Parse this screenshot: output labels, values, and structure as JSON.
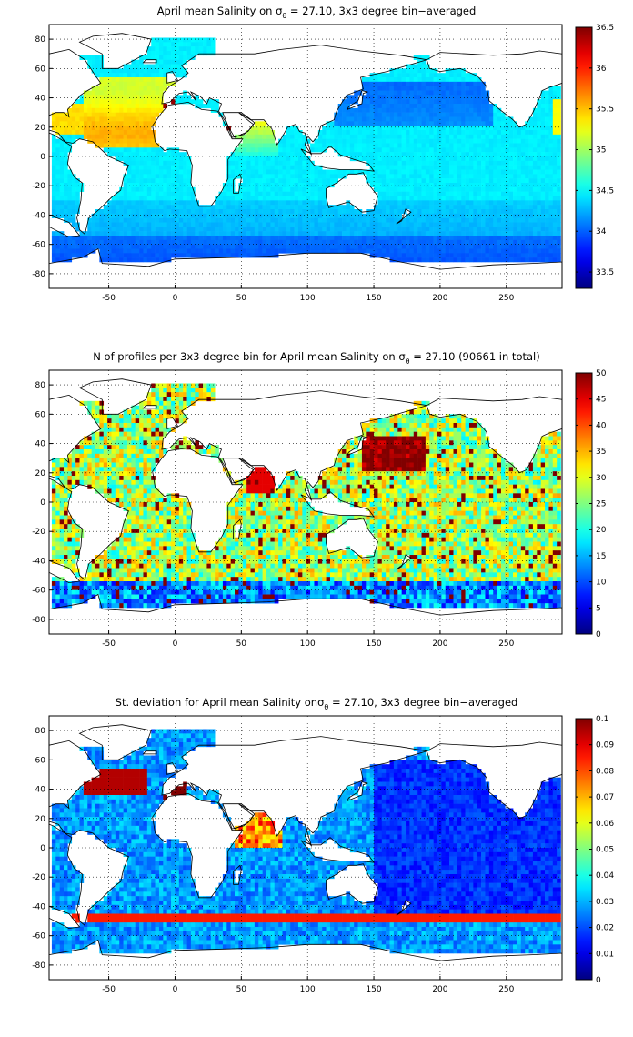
{
  "panels": [
    {
      "title_pre": "April mean Salinity on σ",
      "title_sub": "θ",
      "title_post": " = 27.10, 3x3 degree bin−averaged",
      "colorbar_ticks": [
        "33.5",
        "34",
        "34.5",
        "35",
        "35.5",
        "36",
        "36.5"
      ],
      "colorbar_range": [
        33.3,
        36.5
      ],
      "field": "salinity"
    },
    {
      "title_pre": "N of profiles per 3x3 degree bin for April mean Salinity on σ",
      "title_sub": "θ",
      "title_post": " = 27.10 (90661 in total)",
      "colorbar_ticks": [
        "0",
        "5",
        "10",
        "15",
        "20",
        "25",
        "30",
        "35",
        "40",
        "45",
        "50"
      ],
      "colorbar_range": [
        0,
        50
      ],
      "field": "count"
    },
    {
      "title_pre": "St. deviation for April mean Salinity onσ",
      "title_sub": "θ",
      "title_post": " = 27.10, 3x3 degree bin−averaged",
      "colorbar_ticks": [
        "0",
        "0.01",
        "0.02",
        "0.03",
        "0.04",
        "0.05",
        "0.06",
        "0.07",
        "0.08",
        "0.09",
        "0.1"
      ],
      "colorbar_range": [
        0,
        0.1
      ],
      "field": "stdev"
    }
  ],
  "map_axes": {
    "x_ticks": [
      "-50",
      "0",
      "50",
      "100",
      "150",
      "200",
      "250"
    ],
    "x_tick_values": [
      -50,
      0,
      50,
      100,
      150,
      200,
      250
    ],
    "y_ticks": [
      "80",
      "60",
      "40",
      "20",
      "0",
      "-20",
      "-40",
      "-60",
      "-80"
    ],
    "y_tick_values": [
      80,
      60,
      40,
      20,
      0,
      -20,
      -40,
      -60,
      -80
    ],
    "xlim": [
      -95,
      292
    ],
    "ylim": [
      -90,
      90
    ],
    "grid": "dotted",
    "colormap": "jet"
  }
}
